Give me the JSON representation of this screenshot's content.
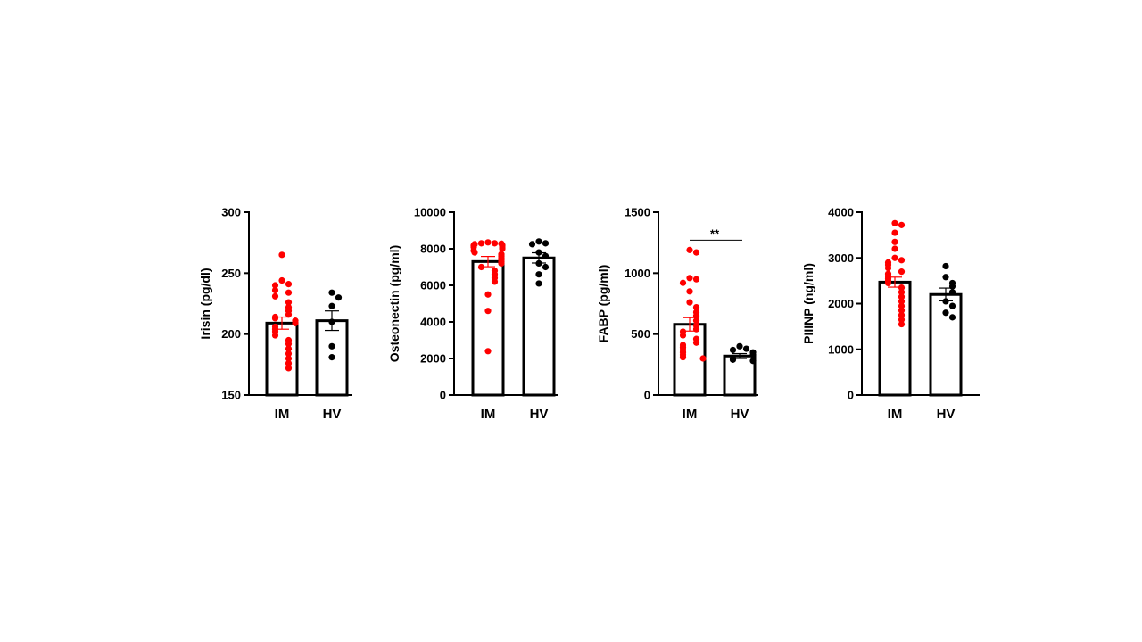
{
  "chart_data": [
    {
      "type": "bar",
      "ylabel": "Irisin (pg/dl)",
      "ylim": [
        150,
        300
      ],
      "yticks": [
        150,
        200,
        250,
        300
      ],
      "yticklabels": [
        "150",
        "200",
        "250",
        "300"
      ],
      "categories": [
        "IM",
        "HV"
      ],
      "bars": [
        {
          "category": "IM",
          "mean": 209,
          "sem": 5,
          "color": "#ff0000",
          "points": [
            265,
            244,
            241,
            240,
            236,
            234,
            231,
            226,
            222,
            219,
            216,
            214,
            213,
            211,
            209,
            206,
            204,
            202,
            199,
            195,
            192,
            188,
            184,
            180,
            176,
            172
          ]
        },
        {
          "category": "HV",
          "mean": 211,
          "sem": 8,
          "color": "#000000",
          "points": [
            234,
            230,
            223,
            210,
            190,
            181
          ]
        }
      ],
      "significance": null
    },
    {
      "type": "bar",
      "ylabel": "Osteonectin (pg/ml)",
      "ylim": [
        0,
        10000
      ],
      "yticks": [
        0,
        2000,
        4000,
        6000,
        8000,
        10000
      ],
      "yticklabels": [
        "0",
        "2000",
        "4000",
        "6000",
        "8000",
        "10000"
      ],
      "categories": [
        "IM",
        "HV"
      ],
      "bars": [
        {
          "category": "IM",
          "mean": 7300,
          "sem": 280,
          "color": "#ff0000",
          "points": [
            8350,
            8300,
            8300,
            8280,
            8250,
            8200,
            8180,
            8150,
            8100,
            8050,
            8000,
            7900,
            7800,
            7700,
            7600,
            7500,
            7400,
            7300,
            7200,
            7000,
            6800,
            6600,
            6400,
            6200,
            5500,
            4600,
            2400
          ]
        },
        {
          "category": "HV",
          "mean": 7500,
          "sem": 280,
          "color": "#000000",
          "points": [
            8400,
            8300,
            8250,
            7800,
            7600,
            7200,
            7000,
            6600,
            6100
          ]
        }
      ],
      "significance": null
    },
    {
      "type": "bar",
      "ylabel": "FABP (pg/ml)",
      "ylim": [
        0,
        1500
      ],
      "yticks": [
        0,
        500,
        1000,
        1500
      ],
      "yticklabels": [
        "0",
        "500",
        "1000",
        "1500"
      ],
      "categories": [
        "IM",
        "HV"
      ],
      "bars": [
        {
          "category": "IM",
          "mean": 580,
          "sem": 55,
          "color": "#ff0000",
          "points": [
            1190,
            1170,
            960,
            950,
            920,
            850,
            760,
            720,
            680,
            650,
            610,
            570,
            540,
            520,
            490,
            460,
            430,
            410,
            390,
            370,
            350,
            330,
            310,
            300
          ]
        },
        {
          "category": "HV",
          "mean": 320,
          "sem": 20,
          "color": "#000000",
          "points": [
            400,
            380,
            370,
            350,
            330,
            300,
            290,
            280
          ]
        }
      ],
      "significance": {
        "label": "**",
        "value": 1270
      }
    },
    {
      "type": "bar",
      "ylabel": "PIIINP (ng/ml)",
      "ylim": [
        0,
        4000
      ],
      "yticks": [
        0,
        1000,
        2000,
        3000,
        4000
      ],
      "yticklabels": [
        "0",
        "1000",
        "2000",
        "3000",
        "4000"
      ],
      "categories": [
        "IM",
        "HV"
      ],
      "bars": [
        {
          "category": "IM",
          "mean": 2470,
          "sem": 110,
          "color": "#ff0000",
          "points": [
            3760,
            3720,
            3550,
            3350,
            3200,
            3000,
            2950,
            2900,
            2850,
            2780,
            2700,
            2650,
            2600,
            2550,
            2500,
            2450,
            2350,
            2250,
            2150,
            2050,
            1950,
            1850,
            1750,
            1650,
            1550
          ]
        },
        {
          "category": "HV",
          "mean": 2200,
          "sem": 140,
          "color": "#000000",
          "points": [
            2820,
            2580,
            2450,
            2380,
            2250,
            2050,
            1950,
            1800,
            1700
          ]
        }
      ],
      "significance": null
    }
  ]
}
